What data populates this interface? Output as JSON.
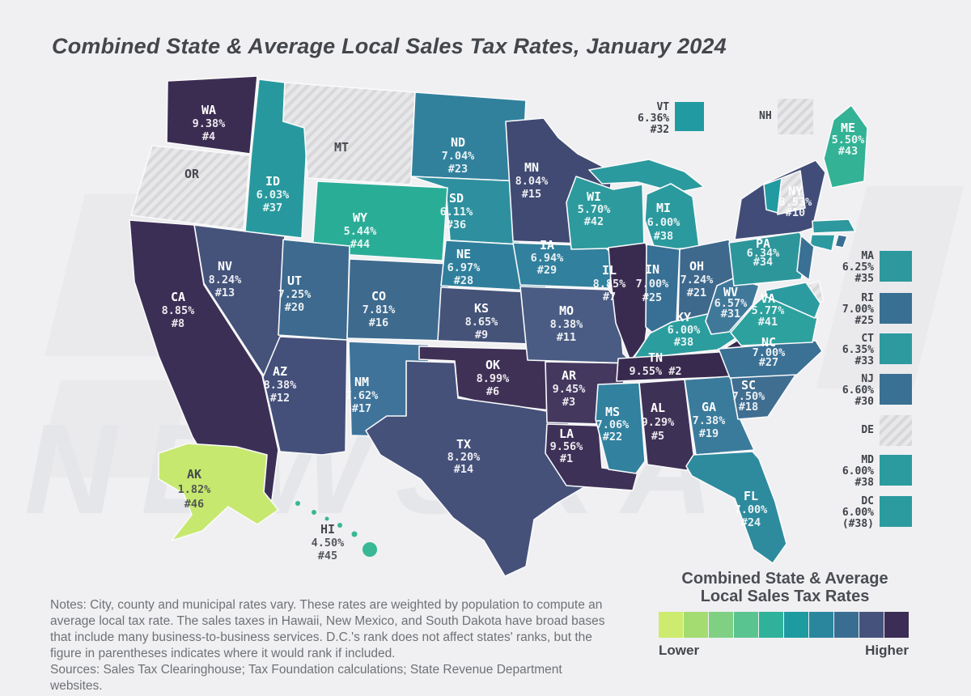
{
  "title": "Combined State & Average Local Sales Tax Rates, January 2024",
  "watermark": "NEWSKA",
  "chart_data": {
    "type": "heatmap",
    "subtype": "us-choropleth-map",
    "title": "Combined State & Average Local Sales Tax Rates, January 2024",
    "unit": "percent",
    "states": [
      {
        "abbr": "WA",
        "rate": "9.38%",
        "rank": "#4",
        "value": 9.38,
        "color": "#3b2d52",
        "hatched": false
      },
      {
        "abbr": "OR",
        "rate": null,
        "rank": null,
        "value": null,
        "color": null,
        "hatched": true
      },
      {
        "abbr": "CA",
        "rate": "8.85%",
        "rank": "#8",
        "value": 8.85,
        "color": "#3c2f55",
        "hatched": false
      },
      {
        "abbr": "NV",
        "rate": "8.24%",
        "rank": "#13",
        "value": 8.24,
        "color": "#45537b",
        "hatched": false
      },
      {
        "abbr": "ID",
        "rate": "6.03%",
        "rank": "#37",
        "value": 6.03,
        "color": "#27999e",
        "hatched": false
      },
      {
        "abbr": "MT",
        "rate": null,
        "rank": null,
        "value": null,
        "color": null,
        "hatched": true
      },
      {
        "abbr": "WY",
        "rate": "5.44%",
        "rank": "#44",
        "value": 5.44,
        "color": "#2aad97",
        "hatched": false
      },
      {
        "abbr": "UT",
        "rate": "7.25%",
        "rank": "#20",
        "value": 7.25,
        "color": "#3d6a8e",
        "hatched": false
      },
      {
        "abbr": "CO",
        "rate": "7.81%",
        "rank": "#16",
        "value": 7.81,
        "color": "#3e6a8e",
        "hatched": false
      },
      {
        "abbr": "AZ",
        "rate": "8.38%",
        "rank": "#12",
        "value": 8.38,
        "color": "#44507a",
        "hatched": false
      },
      {
        "abbr": "NM",
        "rate": "7.62%",
        "rank": "#17",
        "value": 7.62,
        "color": "#3f739a",
        "hatched": false
      },
      {
        "abbr": "ND",
        "rate": "7.04%",
        "rank": "#23",
        "value": 7.04,
        "color": "#31819d",
        "hatched": false
      },
      {
        "abbr": "SD",
        "rate": "6.11%",
        "rank": "#36",
        "value": 6.11,
        "color": "#2e909e",
        "hatched": false
      },
      {
        "abbr": "NE",
        "rate": "6.97%",
        "rank": "#28",
        "value": 6.97,
        "color": "#2f7f9c",
        "hatched": false
      },
      {
        "abbr": "KS",
        "rate": "8.65%",
        "rank": "#9",
        "value": 8.65,
        "color": "#455379",
        "hatched": false
      },
      {
        "abbr": "OK",
        "rate": "8.99%",
        "rank": "#6",
        "value": 8.99,
        "color": "#3f3156",
        "hatched": false
      },
      {
        "abbr": "TX",
        "rate": "8.20%",
        "rank": "#14",
        "value": 8.2,
        "color": "#46517a",
        "hatched": false
      },
      {
        "abbr": "MN",
        "rate": "8.04%",
        "rank": "#15",
        "value": 8.04,
        "color": "#404a72",
        "hatched": false
      },
      {
        "abbr": "IA",
        "rate": "6.94%",
        "rank": "#29",
        "value": 6.94,
        "color": "#31809d",
        "hatched": false
      },
      {
        "abbr": "MO",
        "rate": "8.38%",
        "rank": "#11",
        "value": 8.38,
        "color": "#4a5c83",
        "hatched": false
      },
      {
        "abbr": "AR",
        "rate": "9.45%",
        "rank": "#3",
        "value": 9.45,
        "color": "#44385f",
        "hatched": false
      },
      {
        "abbr": "LA",
        "rate": "9.56%",
        "rank": "#1",
        "value": 9.56,
        "color": "#3e3157",
        "hatched": false
      },
      {
        "abbr": "WI",
        "rate": "5.70%",
        "rank": "#42",
        "value": 5.7,
        "color": "#2d9a9d",
        "hatched": false
      },
      {
        "abbr": "IL",
        "rate": "8.85%",
        "rank": "#7",
        "value": 8.85,
        "color": "#392b50",
        "hatched": false
      },
      {
        "abbr": "MS",
        "rate": "7.06%",
        "rank": "#22",
        "value": 7.06,
        "color": "#31819f",
        "hatched": false
      },
      {
        "abbr": "MI",
        "rate": "6.00%",
        "rank": "#38",
        "value": 6.0,
        "color": "#2b9a9e",
        "hatched": false
      },
      {
        "abbr": "IN",
        "rate": "7.00%",
        "rank": "#25",
        "value": 7.0,
        "color": "#386f94",
        "hatched": false
      },
      {
        "abbr": "OH",
        "rate": "7.24%",
        "rank": "#21",
        "value": 7.24,
        "color": "#3e698d",
        "hatched": false
      },
      {
        "abbr": "KY",
        "rate": "6.00%",
        "rank": "#38",
        "value": 6.0,
        "color": "#2b9d9e",
        "hatched": false
      },
      {
        "abbr": "TN",
        "rate": "9.55%",
        "rank": "#2",
        "value": 9.55,
        "color": "#382a4e",
        "hatched": false,
        "inline_rank": true
      },
      {
        "abbr": "AL",
        "rate": "9.29%",
        "rank": "#5",
        "value": 9.29,
        "color": "#3e3156",
        "hatched": false
      },
      {
        "abbr": "GA",
        "rate": "7.38%",
        "rank": "#19",
        "value": 7.38,
        "color": "#3a7b9b",
        "hatched": false
      },
      {
        "abbr": "FL",
        "rate": "7.00%",
        "rank": "#24",
        "value": 7.0,
        "color": "#2e8b9e",
        "hatched": false
      },
      {
        "abbr": "WV",
        "rate": "6.57%",
        "rank": "#31",
        "value": 6.57,
        "color": "#40789a",
        "hatched": false
      },
      {
        "abbr": "VA",
        "rate": "5.77%",
        "rank": "#41",
        "value": 5.77,
        "color": "#2da19e",
        "hatched": false
      },
      {
        "abbr": "NC",
        "rate": "7.00%",
        "rank": "#27",
        "value": 7.0,
        "color": "#3a7195",
        "hatched": false
      },
      {
        "abbr": "SC",
        "rate": "7.50%",
        "rank": "#18",
        "value": 7.5,
        "color": "#3f6e91",
        "hatched": false
      },
      {
        "abbr": "PA",
        "rate": "6.34%",
        "rank": "#34",
        "value": 6.34,
        "color": "#2d969b",
        "hatched": false
      },
      {
        "abbr": "NY",
        "rate": "8.53%",
        "rank": "#10",
        "value": 8.53,
        "color": "#414d78",
        "hatched": false
      },
      {
        "abbr": "ME",
        "rate": "5.50%",
        "rank": "#43",
        "value": 5.5,
        "color": "#33b295",
        "hatched": false
      },
      {
        "abbr": "AK",
        "rate": "1.82%",
        "rank": "#46",
        "value": 1.82,
        "color": "#c6e86f",
        "hatched": false
      },
      {
        "abbr": "HI",
        "rate": "4.50%",
        "rank": "#45",
        "value": 4.5,
        "color": "#38b894",
        "hatched": false
      }
    ],
    "callouts_top": [
      {
        "abbr": "VT",
        "rate": "6.36%",
        "rank": "#32",
        "value": 6.36,
        "color": "#229aa1",
        "hatched": false
      },
      {
        "abbr": "NH",
        "rate": null,
        "rank": null,
        "value": null,
        "color": null,
        "hatched": true
      }
    ],
    "callouts_right": [
      {
        "abbr": "MA",
        "rate": "6.25%",
        "rank": "#35",
        "value": 6.25,
        "color": "#2d989d",
        "hatched": false
      },
      {
        "abbr": "RI",
        "rate": "7.00%",
        "rank": "#25",
        "value": 7.0,
        "color": "#396f92",
        "hatched": false
      },
      {
        "abbr": "CT",
        "rate": "6.35%",
        "rank": "#33",
        "value": 6.35,
        "color": "#2d9aa0",
        "hatched": false
      },
      {
        "abbr": "NJ",
        "rate": "6.60%",
        "rank": "#30",
        "value": 6.6,
        "color": "#3a7093",
        "hatched": false
      },
      {
        "abbr": "DE",
        "rate": null,
        "rank": null,
        "value": null,
        "color": null,
        "hatched": true
      },
      {
        "abbr": "MD",
        "rate": "6.00%",
        "rank": "#38",
        "value": 6.0,
        "color": "#2b9ba0",
        "hatched": false
      },
      {
        "abbr": "DC",
        "rate": "6.00%",
        "rank": "(#38)",
        "value": 6.0,
        "color": "#2b9ba0",
        "hatched": false
      }
    ],
    "legend": {
      "title_line1": "Combined State & Average",
      "title_line2": "Local Sales Tax Rates",
      "lower": "Lower",
      "higher": "Higher",
      "colors": [
        "#cdeb6e",
        "#a4dc72",
        "#7fd083",
        "#59c48f",
        "#2fb19a",
        "#1d9ba1",
        "#2a869d",
        "#3a6d92",
        "#45537c",
        "#3b2d55"
      ]
    }
  },
  "notes": {
    "text1": "Notes: City, county and municipal rates vary. These rates are weighted by population to compute an average local tax rate. The sales taxes in Hawaii, New Mexico, and South Dakota have broad bases that include many business-to-business services. D.C.'s rank does not affect states' ranks, but the figure in parentheses indicates where it would rank if included.",
    "text2": "Sources: Sales Tax Clearinghouse; Tax Foundation calculations; State Revenue Department websites."
  }
}
